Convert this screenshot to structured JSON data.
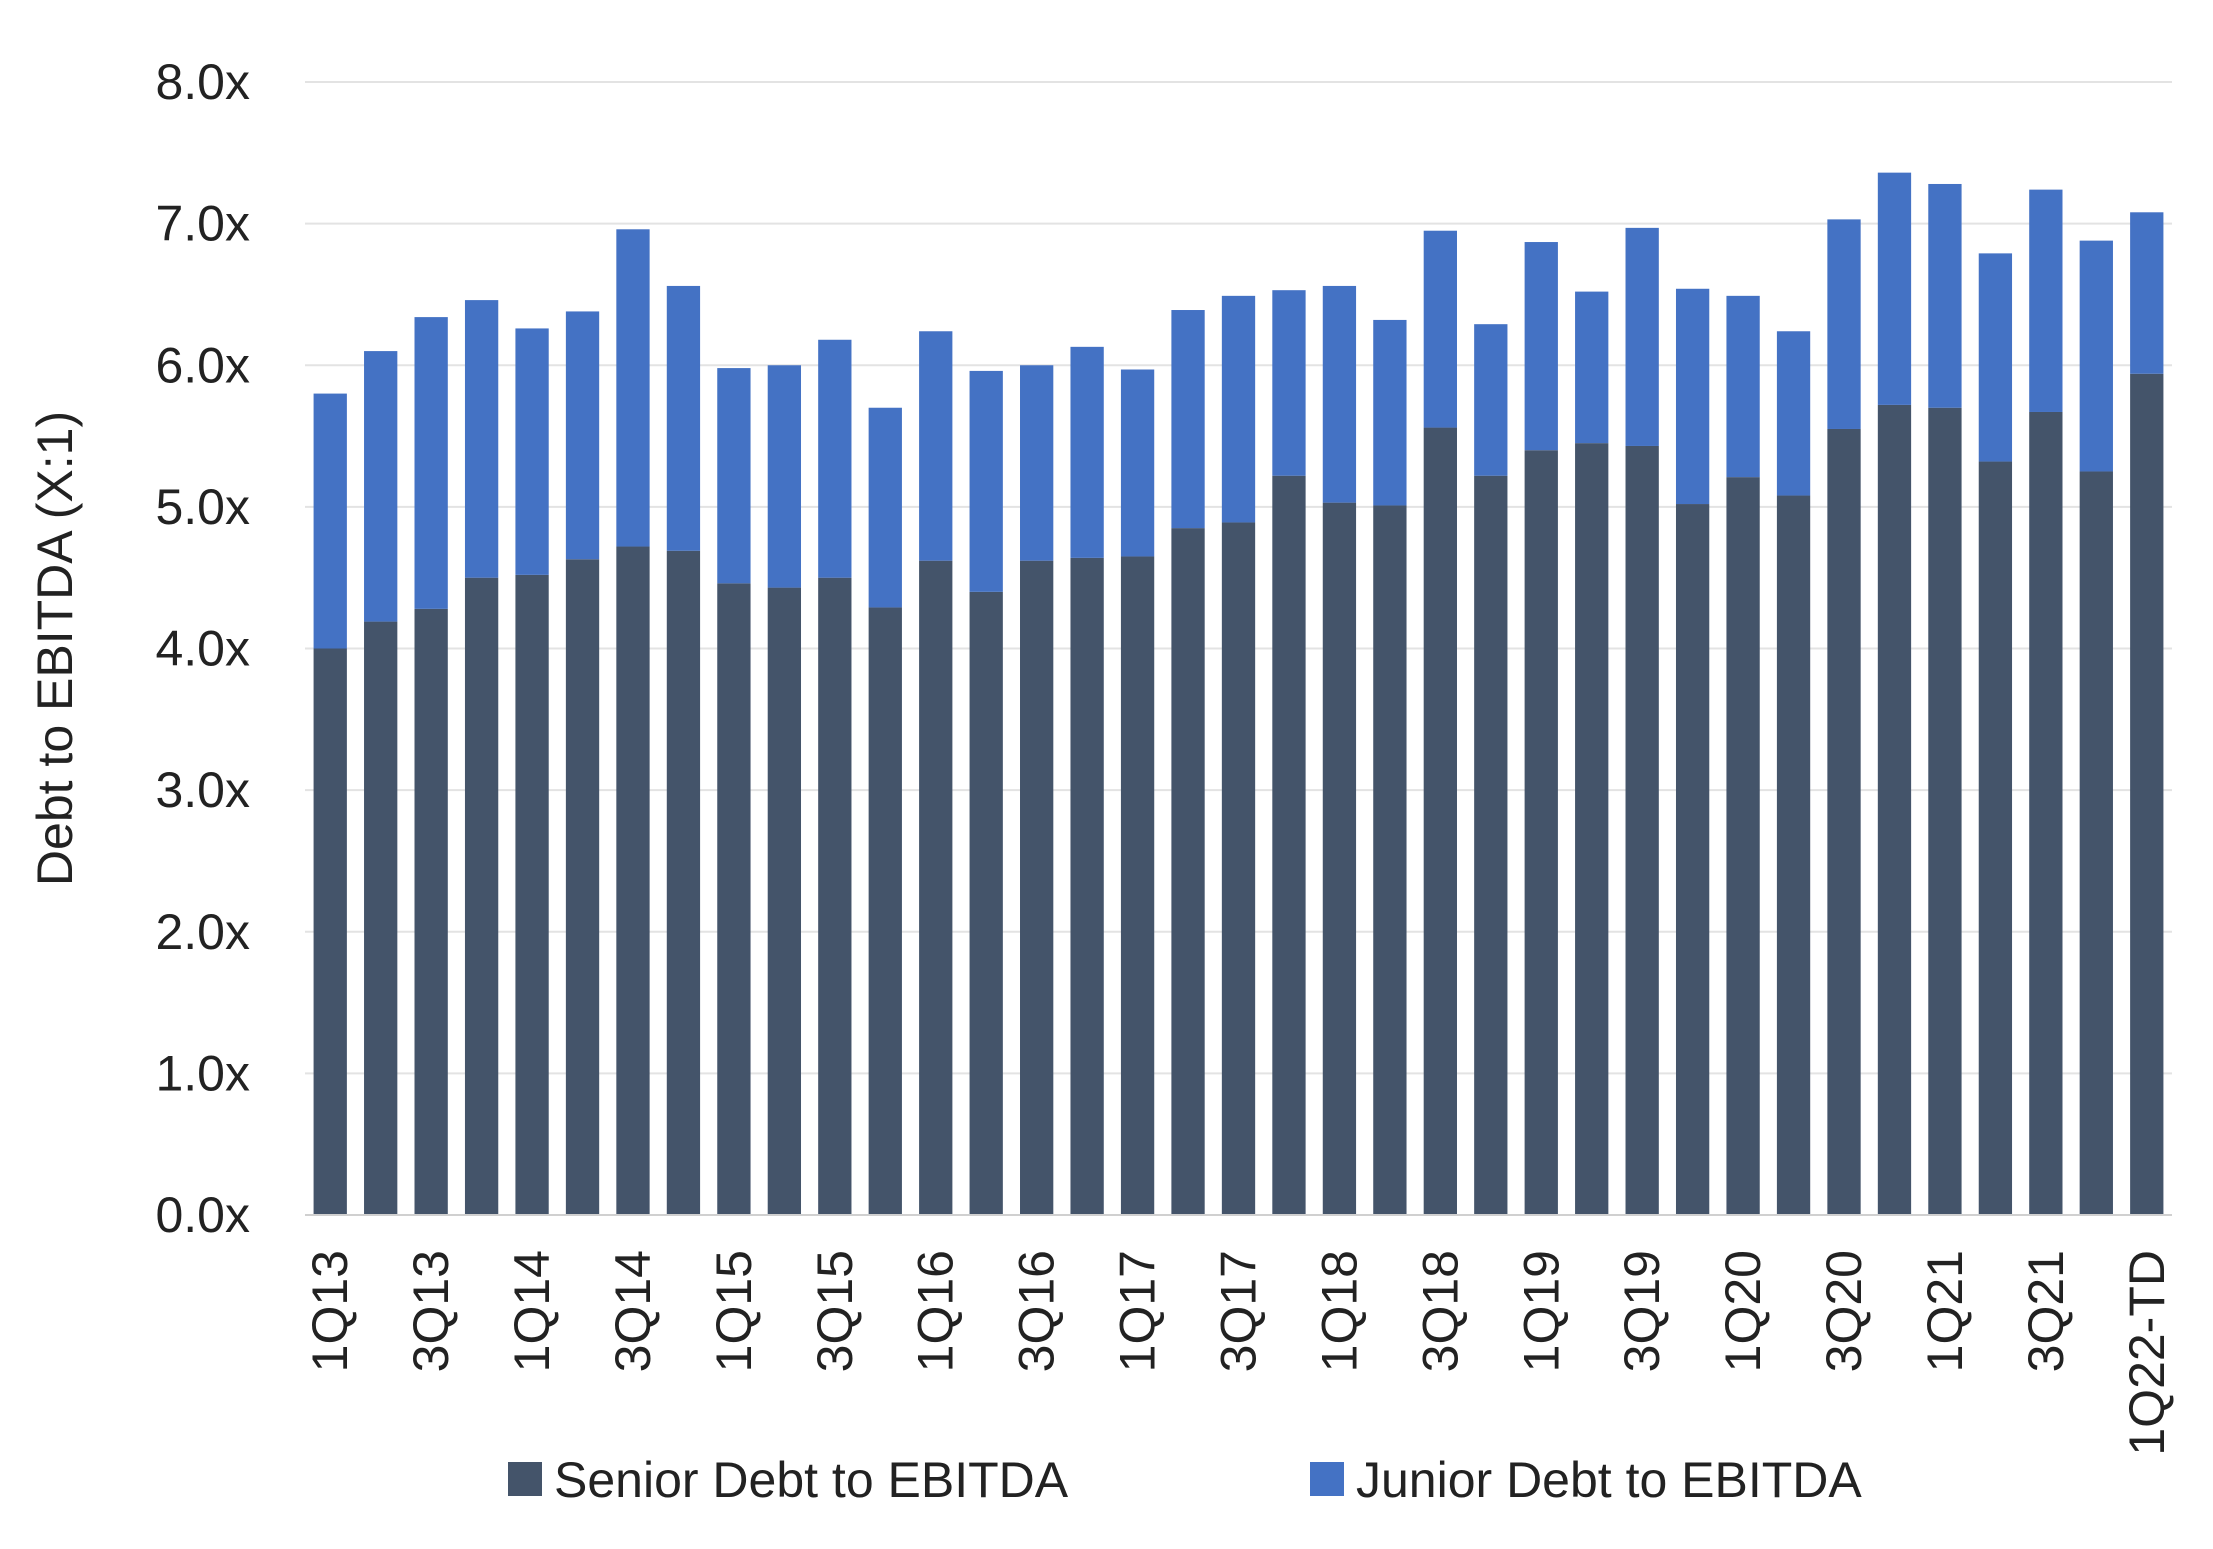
{
  "chart_data": {
    "type": "bar",
    "stacked": true,
    "title": "",
    "xlabel": "",
    "ylabel": "Debt to EBITDA (X:1)",
    "ylim": [
      0,
      8
    ],
    "yticks": [
      0,
      1,
      2,
      3,
      4,
      5,
      6,
      7,
      8
    ],
    "ytick_labels": [
      "0.0x",
      "1.0x",
      "2.0x",
      "3.0x",
      "4.0x",
      "5.0x",
      "6.0x",
      "7.0x",
      "8.0x"
    ],
    "grid": true,
    "legend_position": "bottom",
    "categories": [
      "1Q13",
      "2Q13",
      "3Q13",
      "4Q13",
      "1Q14",
      "2Q14",
      "3Q14",
      "4Q14",
      "1Q15",
      "2Q15",
      "3Q15",
      "4Q15",
      "1Q16",
      "2Q16",
      "3Q16",
      "4Q16",
      "1Q17",
      "2Q17",
      "3Q17",
      "4Q17",
      "1Q18",
      "2Q18",
      "3Q18",
      "4Q18",
      "1Q19",
      "2Q19",
      "3Q19",
      "4Q19",
      "1Q20",
      "2Q20",
      "3Q20",
      "4Q20",
      "1Q21",
      "2Q21",
      "3Q21",
      "4Q21",
      "1Q22-TD"
    ],
    "xtick_labels": [
      "1Q13",
      "",
      "3Q13",
      "",
      "1Q14",
      "",
      "3Q14",
      "",
      "1Q15",
      "",
      "3Q15",
      "",
      "1Q16",
      "",
      "3Q16",
      "",
      "1Q17",
      "",
      "3Q17",
      "",
      "1Q18",
      "",
      "3Q18",
      "",
      "1Q19",
      "",
      "3Q19",
      "",
      "1Q20",
      "",
      "3Q20",
      "",
      "1Q21",
      "",
      "3Q21",
      "",
      "1Q22-TD"
    ],
    "series": [
      {
        "name": "Senior Debt to EBITDA",
        "color": "#44546a",
        "values": [
          4.0,
          4.19,
          4.28,
          4.5,
          4.52,
          4.63,
          4.72,
          4.69,
          4.46,
          4.43,
          4.5,
          4.29,
          4.62,
          4.4,
          4.62,
          4.64,
          4.65,
          4.85,
          4.89,
          5.22,
          5.03,
          5.01,
          5.56,
          5.22,
          5.4,
          5.45,
          5.43,
          5.02,
          5.21,
          5.08,
          5.55,
          5.72,
          5.7,
          5.32,
          5.67,
          5.25,
          5.94
        ]
      },
      {
        "name": "Junior Debt to EBITDA",
        "color": "#4472c4",
        "values": [
          1.8,
          1.91,
          2.06,
          1.96,
          1.74,
          1.75,
          2.24,
          1.87,
          1.52,
          1.57,
          1.68,
          1.41,
          1.62,
          1.56,
          1.38,
          1.49,
          1.32,
          1.54,
          1.6,
          1.31,
          1.53,
          1.31,
          1.39,
          1.07,
          1.47,
          1.07,
          1.54,
          1.52,
          1.28,
          1.16,
          1.48,
          1.64,
          1.58,
          1.47,
          1.57,
          1.63,
          1.14
        ]
      }
    ]
  }
}
